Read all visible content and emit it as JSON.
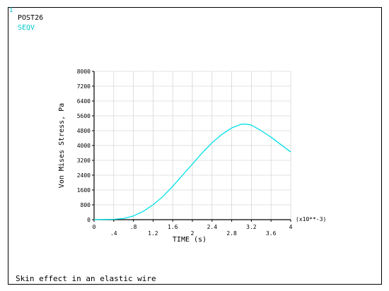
{
  "window": {
    "number": "1",
    "post_label": "POST26",
    "variable_label": "SEQV",
    "footer_title": "Skin effect in an elastic wire"
  },
  "colors": {
    "curve": "#00e0e8",
    "frame": "#000000",
    "grid": "#c8c8c8"
  },
  "chart_data": {
    "type": "line",
    "xlabel": "TIME  (s)",
    "ylabel": "Von Mises Stress, Pa",
    "x_multiplier": "(x10**-3)",
    "xlim": [
      0,
      4
    ],
    "ylim": [
      0,
      8000
    ],
    "x_ticks_row1": [
      "0",
      ".8",
      "1.6",
      "2.4",
      "3.2",
      "4"
    ],
    "x_ticks_row2": [
      ".4",
      "1.2",
      "2",
      "2.8",
      "3.6"
    ],
    "y_ticks": [
      "0",
      "800",
      "1600",
      "2400",
      "3200",
      "4000",
      "4800",
      "5600",
      "6400",
      "7200",
      "8000"
    ],
    "grid": true,
    "series": [
      {
        "x": [
          0,
          0.2,
          0.4,
          0.6,
          0.8,
          1.0,
          1.2,
          1.4,
          1.6,
          1.8,
          2.0,
          2.2,
          2.4,
          2.6,
          2.8,
          3.0,
          3.1,
          3.2,
          3.4,
          3.6,
          3.8,
          4.0
        ],
        "y": [
          0,
          10,
          20,
          60,
          200,
          450,
          800,
          1250,
          1800,
          2400,
          3000,
          3600,
          4150,
          4600,
          4950,
          5150,
          5150,
          5100,
          4800,
          4450,
          4050,
          3650
        ]
      }
    ]
  }
}
